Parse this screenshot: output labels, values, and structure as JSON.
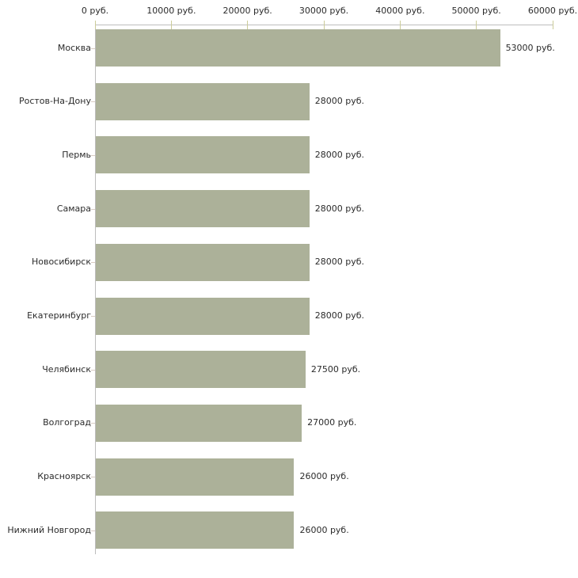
{
  "chart_data": {
    "type": "bar",
    "orientation": "horizontal",
    "title": "",
    "categories": [
      "Москва",
      "Ростов-На-Дону",
      "Пермь",
      "Самара",
      "Новосибирск",
      "Екатеринбург",
      "Челябинск",
      "Волгоград",
      "Красноярск",
      "Нижний Новгород"
    ],
    "values": [
      53000,
      28000,
      28000,
      28000,
      28000,
      28000,
      27500,
      27000,
      26000,
      26000
    ],
    "value_labels": [
      "53000 руб.",
      "28000 руб.",
      "28000 руб.",
      "28000 руб.",
      "28000 руб.",
      "28000 руб.",
      "27500 руб.",
      "27000 руб.",
      "26000 руб.",
      "26000 руб."
    ],
    "x_axis": {
      "position": "top",
      "range": [
        0,
        60000
      ],
      "ticks": [
        0,
        10000,
        20000,
        30000,
        40000,
        50000,
        60000
      ],
      "tick_labels": [
        "0 руб.",
        "10000 руб.",
        "20000 руб.",
        "30000 руб.",
        "40000 руб.",
        "50000 руб.",
        "60000 руб."
      ]
    },
    "xlabel": "",
    "ylabel": "",
    "grid": false,
    "legend": false,
    "colors": {
      "bar": "#ACB199",
      "axis_line": "#BDBDBD",
      "top_tick": "#CCCC99",
      "left_tick": "#D9CCC3",
      "text": "#2B2B2B",
      "background": "#FFFFFF"
    }
  }
}
